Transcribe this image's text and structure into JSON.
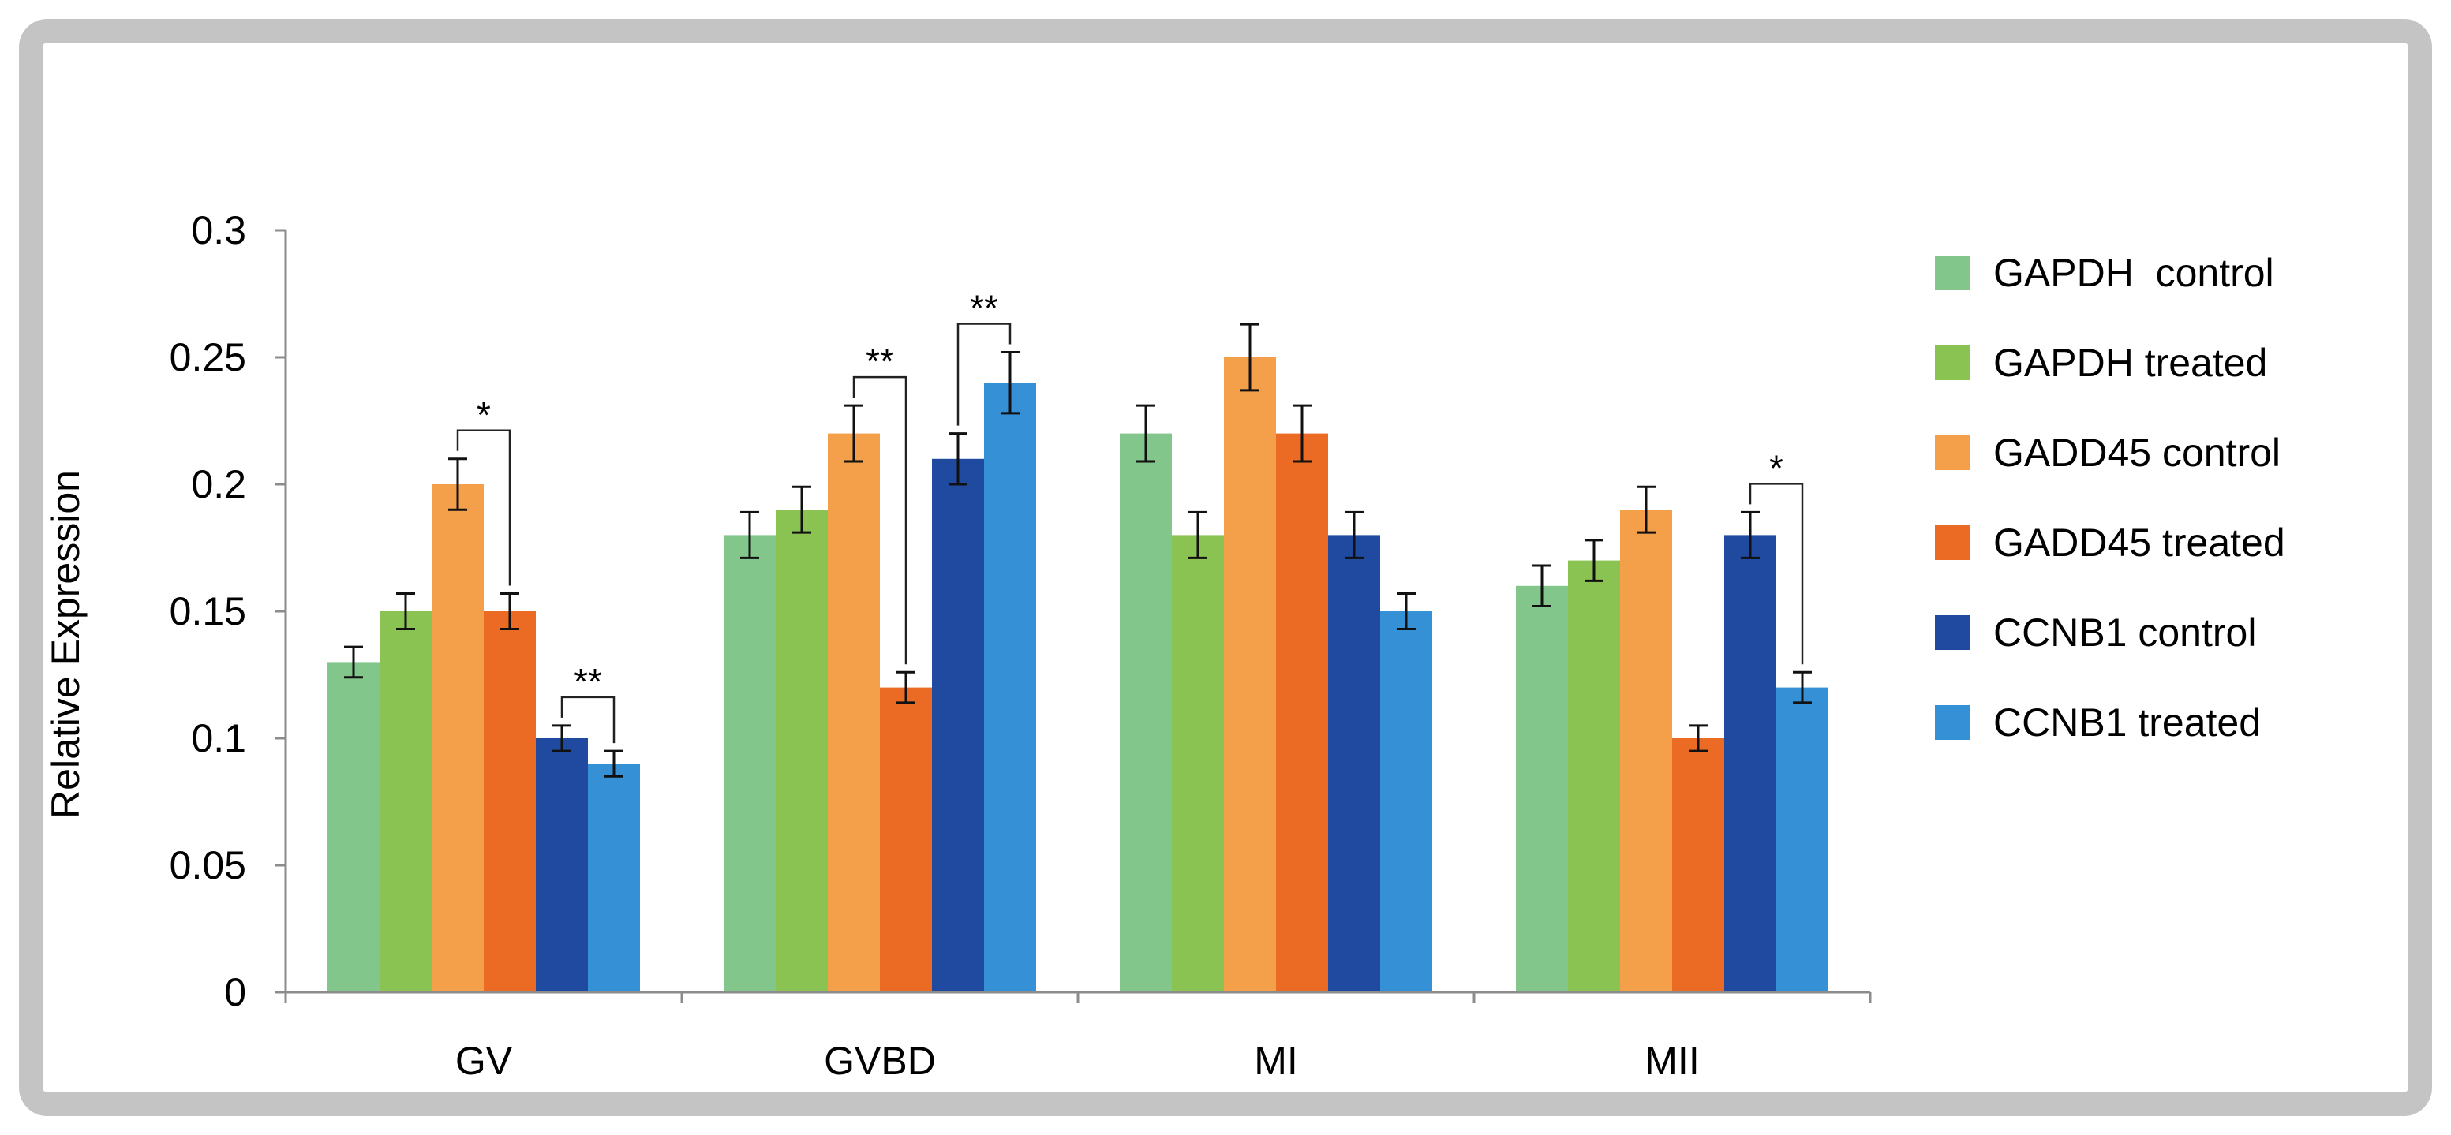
{
  "chart_data": {
    "type": "bar",
    "title": "",
    "xlabel": "",
    "ylabel": "Relative Expression",
    "ylim": [
      0,
      0.3
    ],
    "yticks": [
      {
        "value": 0,
        "label": "0"
      },
      {
        "value": 0.05,
        "label": "0.05"
      },
      {
        "value": 0.1,
        "label": "0.1"
      },
      {
        "value": 0.15,
        "label": "0.15"
      },
      {
        "value": 0.2,
        "label": "0.2"
      },
      {
        "value": 0.25,
        "label": "0.25"
      },
      {
        "value": 0.3,
        "label": "0.3"
      }
    ],
    "grid": false,
    "legend_position": "right",
    "categories": [
      "GV",
      "GVBD",
      "MI",
      "MII"
    ],
    "series": [
      {
        "name": "GAPDH  control",
        "color": "#82c68b",
        "values": [
          0.13,
          0.18,
          0.22,
          0.16
        ],
        "errors": [
          0.006,
          0.009,
          0.011,
          0.008
        ]
      },
      {
        "name": "GAPDH treated",
        "color": "#8bc352",
        "values": [
          0.15,
          0.19,
          0.18,
          0.17
        ],
        "errors": [
          0.007,
          0.009,
          0.009,
          0.008
        ]
      },
      {
        "name": "GADD45 control",
        "color": "#f4a04a",
        "values": [
          0.2,
          0.22,
          0.25,
          0.19
        ],
        "errors": [
          0.01,
          0.011,
          0.013,
          0.009
        ]
      },
      {
        "name": "GADD45 treated",
        "color": "#ec6b24",
        "values": [
          0.15,
          0.12,
          0.22,
          0.1
        ],
        "errors": [
          0.007,
          0.006,
          0.011,
          0.005
        ]
      },
      {
        "name": "CCNB1 control",
        "color": "#1f4aa0",
        "values": [
          0.1,
          0.21,
          0.18,
          0.18
        ],
        "errors": [
          0.005,
          0.01,
          0.009,
          0.009
        ]
      },
      {
        "name": "CCNB1 treated",
        "color": "#3590d5",
        "values": [
          0.09,
          0.24,
          0.15,
          0.12
        ],
        "errors": [
          0.005,
          0.012,
          0.007,
          0.006
        ]
      }
    ],
    "significance": [
      {
        "category": "GV",
        "from_series": 2,
        "to_series": 3,
        "label": "*"
      },
      {
        "category": "GV",
        "from_series": 4,
        "to_series": 5,
        "label": "**"
      },
      {
        "category": "GVBD",
        "from_series": 2,
        "to_series": 3,
        "label": "**"
      },
      {
        "category": "GVBD",
        "from_series": 4,
        "to_series": 5,
        "label": "**"
      },
      {
        "category": "MII",
        "from_series": 4,
        "to_series": 5,
        "label": "*"
      }
    ]
  }
}
